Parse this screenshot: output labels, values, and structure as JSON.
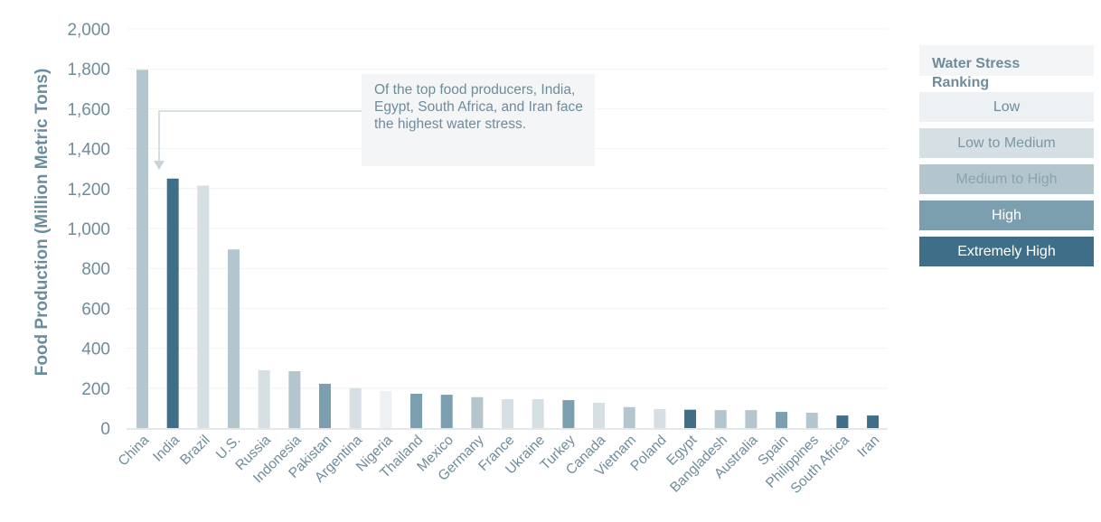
{
  "chart_data": {
    "type": "bar",
    "title": "",
    "xlabel": "",
    "ylabel": "Food Production (Million Metric Tons)",
    "ylim": [
      0,
      2000
    ],
    "yticks": [
      0,
      200,
      400,
      600,
      800,
      1000,
      1200,
      1400,
      1600,
      1800,
      2000
    ],
    "ytick_labels": [
      "0",
      "200",
      "400",
      "600",
      "800",
      "1,000",
      "1,200",
      "1,400",
      "1,600",
      "1,800",
      "2,000"
    ],
    "grid": true,
    "categories": [
      "China",
      "India",
      "Brazil",
      "U.S.",
      "Russia",
      "Indonesia",
      "Pakistan",
      "Argentina",
      "Nigeria",
      "Thailand",
      "Mexico",
      "Germany",
      "France",
      "Ukraine",
      "Turkey",
      "Canada",
      "Vietnam",
      "Poland",
      "Egypt",
      "Bangladesh",
      "Australia",
      "Spain",
      "Philippines",
      "South Africa",
      "Iran"
    ],
    "values": [
      1795,
      1250,
      1215,
      895,
      290,
      285,
      222,
      200,
      186,
      172,
      167,
      155,
      145,
      145,
      140,
      127,
      105,
      95,
      92,
      90,
      90,
      81,
      77,
      63,
      63
    ],
    "water_stress": [
      "Medium to High",
      "Extremely High",
      "Low to Medium",
      "Medium to High",
      "Low to Medium",
      "Medium to High",
      "High",
      "Low to Medium",
      "Low",
      "High",
      "High",
      "Medium to High",
      "Low to Medium",
      "Low to Medium",
      "High",
      "Low to Medium",
      "Medium to High",
      "Low to Medium",
      "Extremely High",
      "Medium to High",
      "Medium to High",
      "High",
      "Medium to High",
      "Extremely High",
      "Extremely High"
    ],
    "legend": {
      "title": "Water Stress Ranking",
      "position": "right",
      "items": [
        {
          "label": "Low",
          "color": "#edf1f3",
          "text_color": "#6f8c9a"
        },
        {
          "label": "Low to Medium",
          "color": "#d6dfe3",
          "text_color": "#7b97a4"
        },
        {
          "label": "Medium to High",
          "color": "#b3c6ce",
          "text_color": "#8aa3ae"
        },
        {
          "label": "High",
          "color": "#7b9faf",
          "text_color": "#ffffff"
        },
        {
          "label": "Extremely High",
          "color": "#3f6e88",
          "text_color": "#ffffff"
        }
      ]
    },
    "annotation": {
      "text": "Of the top food producers, India, Egypt, South Africa, and Iran face the highest water stress.",
      "points_to": "India"
    }
  }
}
